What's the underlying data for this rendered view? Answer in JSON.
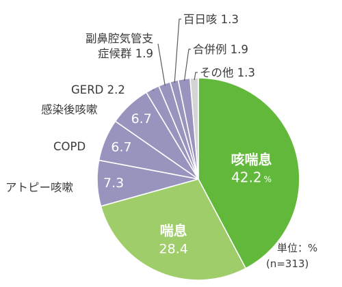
{
  "chart_data": {
    "type": "pie",
    "unit_label": "単位：%",
    "sample_label": "(n=313)",
    "value_suffix": "%",
    "slices": [
      {
        "name": "咳喘息",
        "value": 42.2,
        "color": "#62b83a",
        "label_color": "#ffffff"
      },
      {
        "name": "喘息",
        "value": 28.4,
        "color": "#9fcd6a",
        "label_color": "#ffffff"
      },
      {
        "name": "アトピー咳嗽",
        "value": 7.3,
        "color": "#9894be",
        "label_color": "#ffffff"
      },
      {
        "name": "COPD",
        "value": 6.7,
        "color": "#9894be",
        "label_color": "#ffffff"
      },
      {
        "name": "感染後咳嗽",
        "value": 6.7,
        "color": "#9894be",
        "label_color": "#ffffff"
      },
      {
        "name": "GERD",
        "value": 2.2,
        "color": "#9894be"
      },
      {
        "name_lines": [
          "副鼻腔気管支",
          "症候群"
        ],
        "value": 1.9,
        "color": "#9894be"
      },
      {
        "name": "百日咳",
        "value": 1.3,
        "color": "#9894be"
      },
      {
        "name": "合併例",
        "value": 1.9,
        "color": "#9894be"
      },
      {
        "name": "その他",
        "value": 1.3,
        "color": "#d4d4d4"
      }
    ]
  }
}
